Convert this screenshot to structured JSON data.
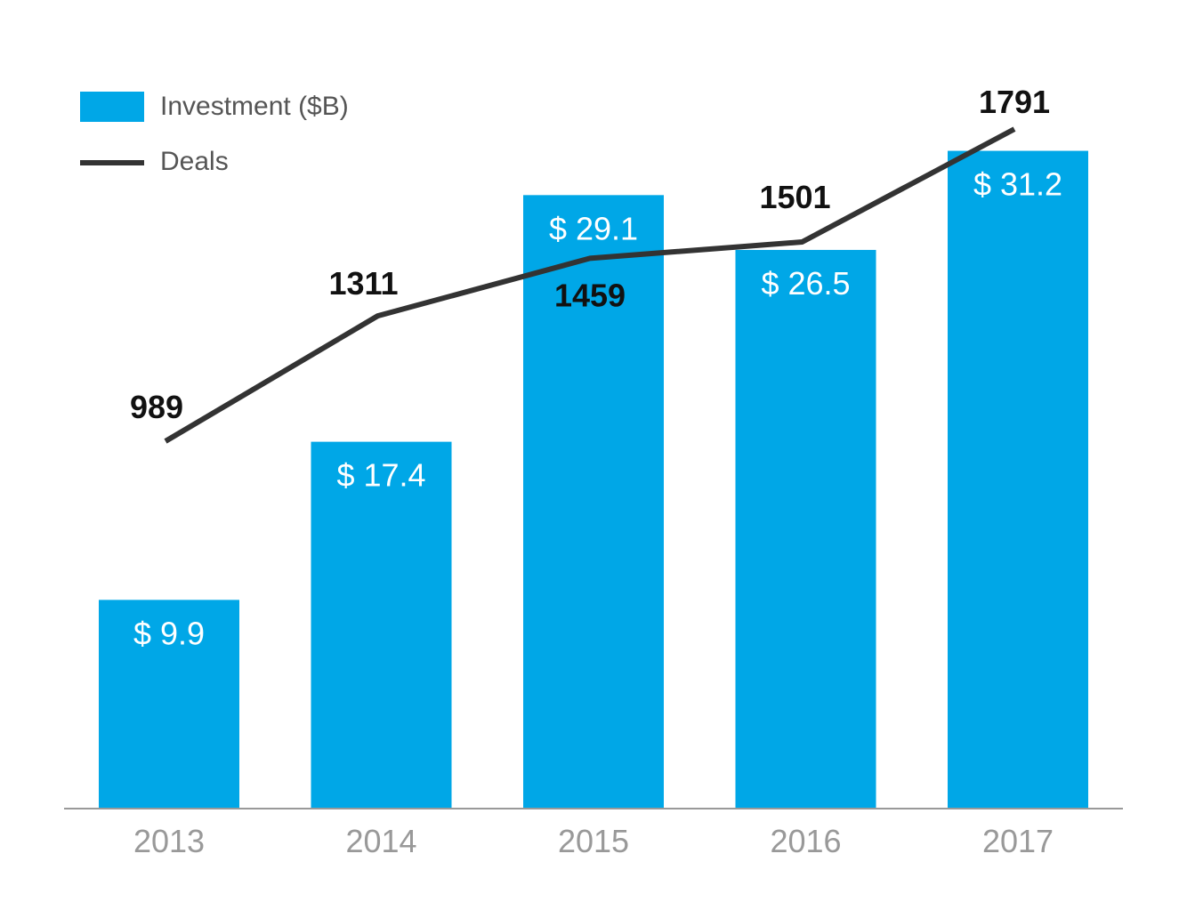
{
  "legend": {
    "bar_label": "Investment ($B)",
    "line_label": "Deals"
  },
  "colors": {
    "bar": "#00a7e7",
    "line": "#333333",
    "bar_label_text": "#ffffff",
    "line_label_text": "#111111",
    "tick_label": "#999999",
    "axis": "#999999"
  },
  "chart_data": {
    "type": "bar",
    "categories": [
      "2013",
      "2014",
      "2015",
      "2016",
      "2017"
    ],
    "series": [
      {
        "name": "Investment ($B)",
        "type": "bar",
        "values": [
          9.9,
          17.4,
          29.1,
          26.5,
          31.2
        ],
        "labels": [
          "$ 9.9",
          "$ 17.4",
          "$ 29.1",
          "$ 26.5",
          "$ 31.2"
        ]
      },
      {
        "name": "Deals",
        "type": "line",
        "values": [
          989,
          1311,
          1459,
          1501,
          1791
        ],
        "labels": [
          "989",
          "1311",
          "1459",
          "1501",
          "1791"
        ]
      }
    ],
    "title": "",
    "xlabel": "",
    "ylabel": "",
    "legend_position": "top-left",
    "grid": false
  }
}
